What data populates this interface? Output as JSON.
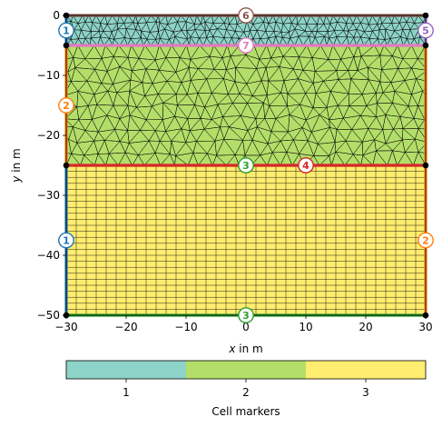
{
  "chart_data": {
    "type": "diagram",
    "xlabel_var": "x",
    "xlabel_unit": " in m",
    "ylabel_var": "y",
    "ylabel_unit": " in m",
    "xlim": [
      -30,
      30
    ],
    "ylim": [
      -50,
      0
    ],
    "x_ticks": [
      -30,
      -20,
      -10,
      0,
      10,
      20,
      30
    ],
    "y_ticks": [
      0,
      -10,
      -20,
      -30,
      -40,
      -50
    ],
    "x_tick_labels": [
      "−30",
      "−20",
      "−10",
      "0",
      "10",
      "20",
      "30"
    ],
    "y_tick_labels": [
      "0",
      "−10",
      "−20",
      "−30",
      "−40",
      "−50"
    ],
    "regions": [
      {
        "marker": 1,
        "color": "#8dd3c7",
        "y_top": 0,
        "y_bottom": -5,
        "mesh": "triangular"
      },
      {
        "marker": 2,
        "color": "#b3de69",
        "y_top": -5,
        "y_bottom": -25,
        "mesh": "triangular"
      },
      {
        "marker": 3,
        "color": "#ffed6f",
        "y_top": -25,
        "y_bottom": -50,
        "mesh": "quadrilateral"
      }
    ],
    "boundaries": [
      {
        "label": "1",
        "color": "#1f77b4",
        "x": -30,
        "y": -2.5
      },
      {
        "label": "2",
        "color": "#ff7f0e",
        "x": -30,
        "y": -15
      },
      {
        "label": "1",
        "color": "#1f77b4",
        "x": -30,
        "y": -37.5
      },
      {
        "label": "2",
        "color": "#ff7f0e",
        "x": 30,
        "y": -37.5
      },
      {
        "label": "3",
        "color": "#2ca02c",
        "x": 0,
        "y": -25
      },
      {
        "label": "3",
        "color": "#2ca02c",
        "x": 0,
        "y": -50
      },
      {
        "label": "4",
        "color": "#d62728",
        "x": 10,
        "y": -25
      },
      {
        "label": "5",
        "color": "#9467bd",
        "x": 30,
        "y": -2.5
      },
      {
        "label": "6",
        "color": "#8c564b",
        "x": 0,
        "y": 0
      },
      {
        "label": "7",
        "color": "#e377c2",
        "x": 0,
        "y": -5
      }
    ],
    "colorbar": {
      "label": "Cell markers",
      "ticks": [
        "1",
        "2",
        "3"
      ]
    }
  }
}
